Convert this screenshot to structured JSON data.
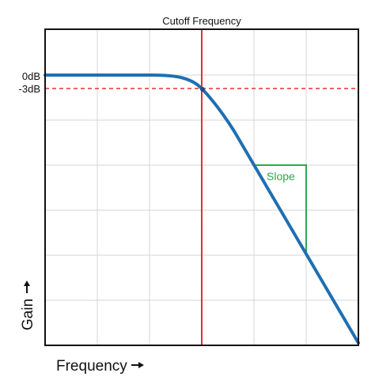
{
  "labels": {
    "cutoff": "Cutoff Frequency",
    "zero_db": "0dB",
    "minus_three_db": "-3dB",
    "slope": "Slope",
    "x_axis": "Frequency",
    "y_axis": "Gain"
  },
  "colors": {
    "response_curve": "#1f6fb2",
    "cutoff_line": "#e53030",
    "minus_three_db_line": "#e53030",
    "slope_triangle": "#2ea84a",
    "grid": "#d4d4d4",
    "frame": "#111111"
  },
  "icons": {
    "x_axis_arrow": "right-arrow-icon",
    "y_axis_arrow": "up-arrow-icon"
  }
}
